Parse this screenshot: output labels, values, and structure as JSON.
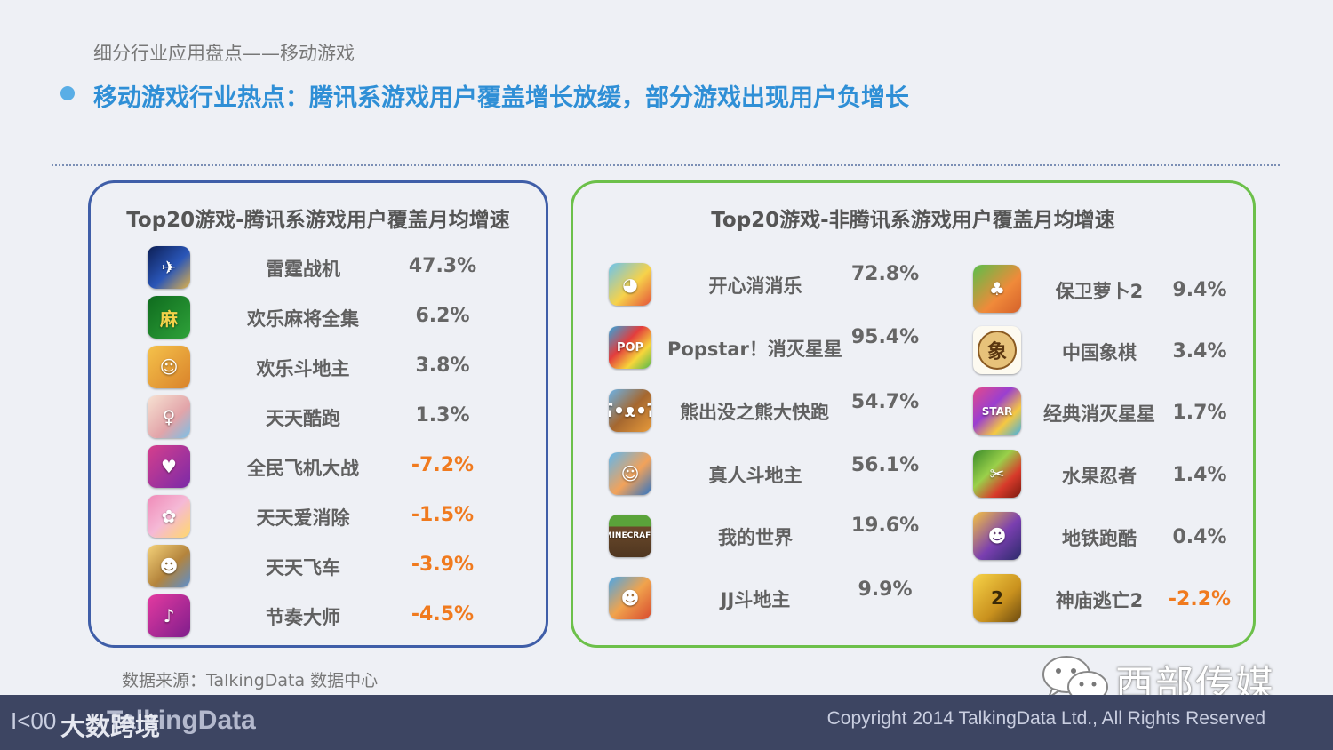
{
  "header": {
    "subtitle": "细分行业应用盘点——移动游戏",
    "headline": "移动游戏行业热点：腾讯系游戏用户覆盖增长放缓，部分游戏出现用户负增长"
  },
  "left_panel": {
    "title": "Top20游戏-腾讯系游戏用户覆盖月均增速",
    "games": [
      {
        "name": "雷霆战机",
        "value": "47.3%",
        "negative": false,
        "icon": "fighter-jet-icon"
      },
      {
        "name": "欢乐麻将全集",
        "value": "6.2%",
        "negative": false,
        "icon": "mahjong-icon"
      },
      {
        "name": "欢乐斗地主",
        "value": "3.8%",
        "negative": false,
        "icon": "landlord-face-icon"
      },
      {
        "name": "天天酷跑",
        "value": "1.3%",
        "negative": false,
        "icon": "runner-girl-icon"
      },
      {
        "name": "全民飞机大战",
        "value": "-7.2%",
        "negative": true,
        "icon": "plane-girl-icon"
      },
      {
        "name": "天天爱消除",
        "value": "-1.5%",
        "negative": true,
        "icon": "cute-pets-icon"
      },
      {
        "name": "天天飞车",
        "value": "-3.9%",
        "negative": true,
        "icon": "racer-girl-icon"
      },
      {
        "name": "节奏大师",
        "value": "-4.5%",
        "negative": true,
        "icon": "music-note-icon"
      }
    ]
  },
  "right_panel": {
    "title": "Top20游戏-非腾讯系游戏用户覆盖月均增速",
    "col1": [
      {
        "name": "开心消消乐",
        "value": "72.8%",
        "negative": false,
        "icon": "happy-match-icon"
      },
      {
        "name": "Popstar！消灭星星",
        "value": "95.4%",
        "negative": false,
        "icon": "popstar-icon"
      },
      {
        "name": "熊出没之熊大快跑",
        "value": "54.7%",
        "negative": false,
        "icon": "bear-icon"
      },
      {
        "name": "真人斗地主",
        "value": "56.1%",
        "negative": false,
        "icon": "cartoon-man-icon"
      },
      {
        "name": "我的世界",
        "value": "19.6%",
        "negative": false,
        "icon": "minecraft-icon"
      },
      {
        "name": "JJ斗地主",
        "value": "9.9%",
        "negative": false,
        "icon": "jj-landlord-icon"
      }
    ],
    "col2": [
      {
        "name": "保卫萝卜2",
        "value": "9.4%",
        "negative": false,
        "icon": "carrot-icon"
      },
      {
        "name": "中国象棋",
        "value": "3.4%",
        "negative": false,
        "icon": "chinese-chess-icon"
      },
      {
        "name": "经典消灭星星",
        "value": "1.7%",
        "negative": false,
        "icon": "popstar-classic-icon"
      },
      {
        "name": "水果忍者",
        "value": "1.4%",
        "negative": false,
        "icon": "fruit-ninja-icon"
      },
      {
        "name": "地铁跑酷",
        "value": "0.4%",
        "negative": false,
        "icon": "subway-surfer-icon"
      },
      {
        "name": "神庙逃亡2",
        "value": "-2.2%",
        "negative": true,
        "icon": "temple-run-icon"
      }
    ]
  },
  "source": "数据来源：TalkingData 数据中心",
  "watermark": "西部传媒",
  "footer": {
    "copyright": "Copyright 2014 TalkingData Ltd., All Rights Reserved",
    "brand_mark": "I<00",
    "brand_zh": "大数跨境",
    "brand_logo": "TalkingData"
  },
  "colors": {
    "headline": "#2f8fd6",
    "left_border": "#3f5ea8",
    "right_border": "#6cc04a",
    "negative": "#f07a1e",
    "footer": "#3d4562"
  }
}
